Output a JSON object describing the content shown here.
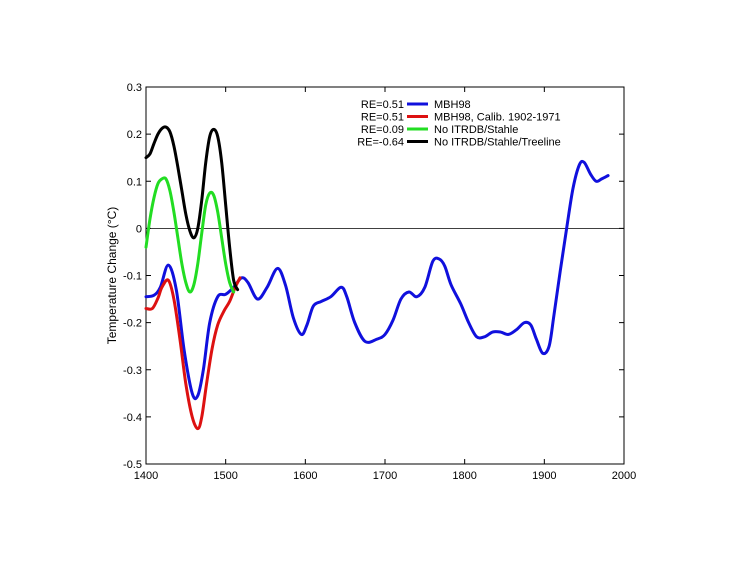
{
  "chart_data": {
    "type": "line",
    "title": "",
    "xlabel": "",
    "ylabel": "Temperature Change (°C)",
    "xlim": [
      1400,
      2000
    ],
    "ylim": [
      -0.5,
      0.3
    ],
    "xticks": [
      1400,
      1500,
      1600,
      1700,
      1800,
      1900,
      2000
    ],
    "yticks": [
      -0.5,
      -0.4,
      -0.3,
      -0.2,
      -0.1,
      0,
      0.1,
      0.2,
      0.3
    ],
    "ytick_labels": [
      "-0.5",
      "-0.4",
      "-0.3",
      "-0.2",
      "-0.1",
      "0",
      "0.1",
      "0.2",
      "0.3"
    ],
    "zero_line": true,
    "grid": false,
    "legend_position": "top-right",
    "series": [
      {
        "name": "MBH98",
        "re": "RE=0.51",
        "color": "#1010dd",
        "x": [
          1400,
          1410,
          1418,
          1428,
          1438,
          1448,
          1458,
          1465,
          1472,
          1480,
          1490,
          1500,
          1510,
          1520,
          1528,
          1540,
          1552,
          1565,
          1575,
          1585,
          1595,
          1602,
          1610,
          1620,
          1632,
          1645,
          1652,
          1662,
          1675,
          1690,
          1700,
          1710,
          1720,
          1730,
          1740,
          1750,
          1760,
          1768,
          1775,
          1783,
          1795,
          1805,
          1815,
          1825,
          1835,
          1845,
          1855,
          1865,
          1875,
          1883,
          1890,
          1898,
          1906,
          1912,
          1920,
          1928,
          1936,
          1944,
          1950,
          1958,
          1965,
          1972,
          1980
        ],
        "y": [
          -0.145,
          -0.142,
          -0.125,
          -0.078,
          -0.13,
          -0.26,
          -0.35,
          -0.355,
          -0.3,
          -0.2,
          -0.145,
          -0.14,
          -0.125,
          -0.105,
          -0.115,
          -0.15,
          -0.125,
          -0.085,
          -0.12,
          -0.19,
          -0.225,
          -0.205,
          -0.165,
          -0.155,
          -0.145,
          -0.125,
          -0.145,
          -0.2,
          -0.24,
          -0.235,
          -0.225,
          -0.195,
          -0.15,
          -0.135,
          -0.145,
          -0.125,
          -0.07,
          -0.065,
          -0.08,
          -0.12,
          -0.16,
          -0.2,
          -0.23,
          -0.23,
          -0.22,
          -0.22,
          -0.225,
          -0.215,
          -0.2,
          -0.205,
          -0.235,
          -0.265,
          -0.25,
          -0.185,
          -0.09,
          0.0,
          0.085,
          0.135,
          0.14,
          0.115,
          0.1,
          0.105,
          0.112
        ]
      },
      {
        "name": "MBH98, Calib. 1902-1971",
        "re": "RE=0.51",
        "color": "#dd1111",
        "x": [
          1400,
          1408,
          1415,
          1420,
          1428,
          1435,
          1443,
          1450,
          1458,
          1465,
          1470,
          1476,
          1483,
          1490,
          1498,
          1505,
          1512,
          1518
        ],
        "y": [
          -0.17,
          -0.17,
          -0.148,
          -0.125,
          -0.11,
          -0.15,
          -0.24,
          -0.33,
          -0.4,
          -0.425,
          -0.4,
          -0.33,
          -0.255,
          -0.205,
          -0.175,
          -0.155,
          -0.125,
          -0.105
        ]
      },
      {
        "name": "No ITRDB/Stahle",
        "re": "RE=0.09",
        "color": "#22dd22",
        "x": [
          1400,
          1405,
          1410,
          1415,
          1420,
          1425,
          1430,
          1435,
          1440,
          1445,
          1450,
          1455,
          1460,
          1465,
          1470,
          1475,
          1480,
          1485,
          1490,
          1495,
          1500,
          1505,
          1510
        ],
        "y": [
          -0.04,
          0.02,
          0.065,
          0.095,
          0.105,
          0.105,
          0.08,
          0.035,
          -0.02,
          -0.075,
          -0.115,
          -0.135,
          -0.12,
          -0.075,
          -0.01,
          0.05,
          0.075,
          0.07,
          0.035,
          -0.02,
          -0.075,
          -0.115,
          -0.135
        ]
      },
      {
        "name": "No ITRDB/Stahle/Treeline",
        "re": "RE=-0.64",
        "color": "#000000",
        "x": [
          1400,
          1405,
          1410,
          1415,
          1420,
          1425,
          1430,
          1435,
          1440,
          1445,
          1450,
          1455,
          1460,
          1465,
          1470,
          1475,
          1480,
          1485,
          1490,
          1495,
          1500,
          1505,
          1510,
          1515
        ],
        "y": [
          0.15,
          0.158,
          0.18,
          0.2,
          0.212,
          0.215,
          0.205,
          0.175,
          0.13,
          0.08,
          0.03,
          -0.005,
          -0.02,
          0.0,
          0.06,
          0.14,
          0.195,
          0.21,
          0.195,
          0.14,
          0.05,
          -0.04,
          -0.11,
          -0.13
        ]
      }
    ]
  }
}
